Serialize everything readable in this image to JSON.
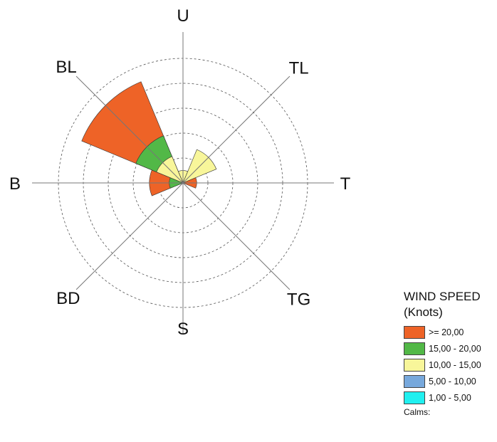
{
  "chart_data": {
    "type": "wind-rose",
    "directions": [
      "U",
      "TL",
      "T",
      "TG",
      "S",
      "BD",
      "B",
      "BL"
    ],
    "rings": [
      1,
      2,
      3,
      4,
      5
    ],
    "grid": true,
    "legend_title_line1": "WIND SPEED",
    "legend_title_line2": "(Knots)",
    "bins": [
      {
        "label": ">= 20,00",
        "color": "#ee6327"
      },
      {
        "label": "15,00 - 20,00",
        "color": "#52b847"
      },
      {
        "label": "10,00 - 15,00",
        "color": "#f8f69a"
      },
      {
        "label": "5,00 - 10,00",
        "color": "#77a8dc"
      },
      {
        "label": "1,00 - 5,00",
        "color": "#20f0f0"
      }
    ],
    "calms_label": "Calms:",
    "series": [
      {
        "direction": "U",
        "values": [
          0,
          0,
          0.5,
          0,
          0
        ]
      },
      {
        "direction": "TL",
        "values": [
          0,
          0,
          1.45,
          0,
          0
        ]
      },
      {
        "direction": "T",
        "values": [
          0.55,
          0,
          0,
          0,
          0
        ]
      },
      {
        "direction": "TG",
        "values": [
          0,
          0,
          0,
          0,
          0
        ]
      },
      {
        "direction": "S",
        "values": [
          0,
          0,
          0,
          0,
          0
        ]
      },
      {
        "direction": "BD",
        "values": [
          0,
          0,
          0,
          0,
          0
        ]
      },
      {
        "direction": "B",
        "values": [
          0.8,
          0.55,
          0,
          0,
          0
        ]
      },
      {
        "direction": "BL",
        "values": [
          2.35,
          0.9,
          1.15,
          0,
          0
        ]
      }
    ]
  }
}
